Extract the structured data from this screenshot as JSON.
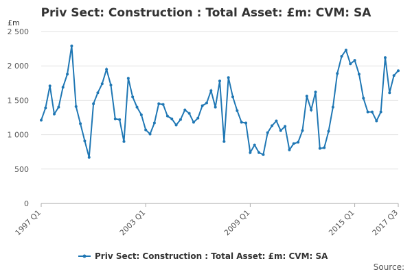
{
  "chart_data": {
    "type": "line",
    "title": "Priv Sect: Construction : Total Asset: £m: CVM: SA",
    "ylabel": "£m",
    "ylim": [
      0,
      2500
    ],
    "yticks": [
      0,
      500,
      1000,
      1500,
      2000,
      2500
    ],
    "ytick_labels": [
      "0",
      "500",
      "1 000",
      "1 500",
      "2 000",
      "2 500"
    ],
    "xtick_labels": [
      "1997 Q1",
      "2003 Q1",
      "2009 Q1",
      "2015 Q1",
      "2017 Q3"
    ],
    "xtick_indices": [
      0,
      24,
      48,
      72,
      82
    ],
    "legend_position": "bottom",
    "grid": true,
    "color": "#1f77b4",
    "series": [
      {
        "name": "Priv Sect: Construction : Total Asset: £m: CVM: SA",
        "start": "1997 Q1",
        "end": "2017 Q3",
        "values": [
          1210,
          1390,
          1710,
          1300,
          1400,
          1690,
          1880,
          2290,
          1410,
          1160,
          910,
          670,
          1450,
          1610,
          1740,
          1950,
          1720,
          1230,
          1220,
          900,
          1820,
          1550,
          1400,
          1290,
          1070,
          1010,
          1170,
          1450,
          1440,
          1270,
          1230,
          1140,
          1220,
          1360,
          1310,
          1180,
          1240,
          1420,
          1460,
          1640,
          1400,
          1780,
          900,
          1830,
          1550,
          1350,
          1180,
          1170,
          740,
          850,
          740,
          710,
          1030,
          1130,
          1200,
          1060,
          1120,
          780,
          870,
          890,
          1060,
          1560,
          1360,
          1620,
          800,
          810,
          1050,
          1400,
          1890,
          2140,
          2230,
          2030,
          2080,
          1880,
          1530,
          1330,
          1330,
          1200,
          1330,
          2120,
          1610,
          1860,
          1930
        ]
      }
    ]
  },
  "footer": {
    "source_label": "Source:"
  }
}
